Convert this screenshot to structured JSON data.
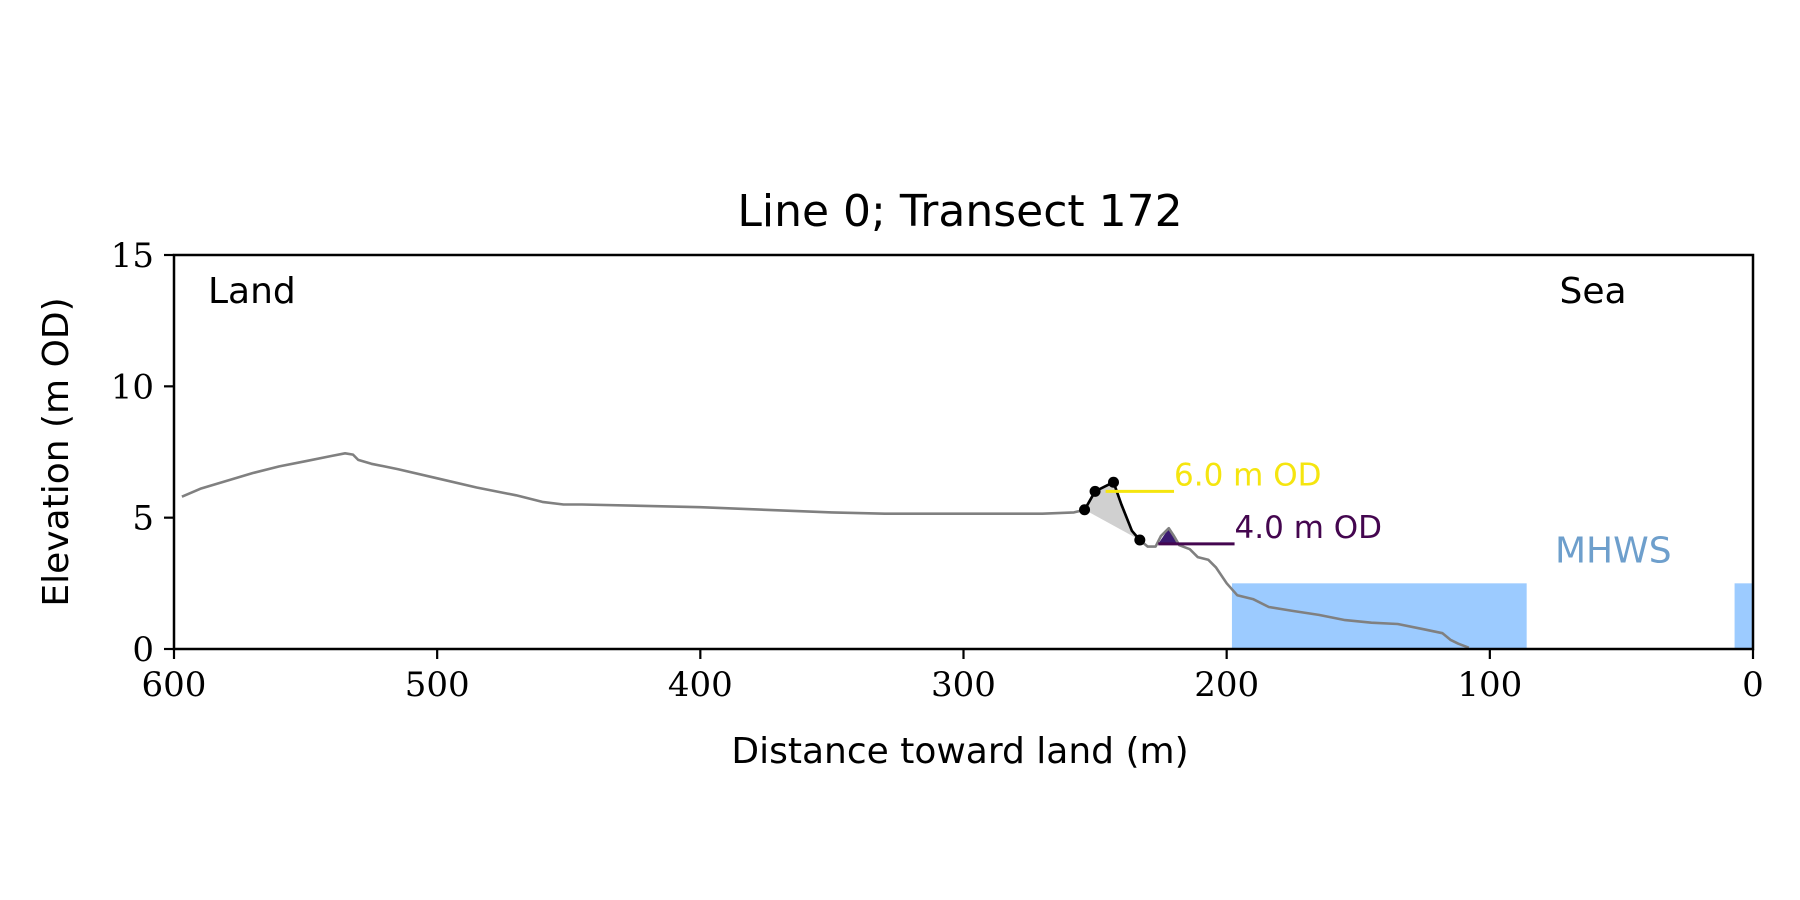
{
  "chart_data": {
    "type": "line",
    "title": "Line 0; Transect 172",
    "xlabel": "Distance toward land (m)",
    "ylabel": "Elevation (m OD)",
    "xlim": [
      600,
      0
    ],
    "ylim": [
      0,
      15
    ],
    "x_ticks": [
      600,
      500,
      400,
      300,
      200,
      100,
      0
    ],
    "y_ticks": [
      0,
      5,
      10,
      15
    ],
    "grid": false,
    "corner_labels": {
      "left": "Land",
      "right": "Sea"
    },
    "profile": {
      "color": "#808080",
      "x": [
        597,
        590,
        580,
        570,
        560,
        550,
        540,
        535,
        532,
        530,
        525,
        515,
        500,
        485,
        470,
        460,
        452,
        445,
        400,
        350,
        330,
        300,
        270,
        258,
        254,
        250,
        246,
        243,
        240,
        236,
        233,
        230,
        227,
        225,
        222,
        220,
        218,
        214,
        211,
        207,
        204,
        200,
        196,
        190,
        184,
        175,
        165,
        155,
        145,
        135,
        125,
        118,
        115,
        112,
        108
      ],
      "y": [
        5.8,
        6.1,
        6.4,
        6.7,
        6.95,
        7.15,
        7.35,
        7.45,
        7.4,
        7.2,
        7.05,
        6.85,
        6.5,
        6.15,
        5.85,
        5.6,
        5.5,
        5.5,
        5.4,
        5.2,
        5.15,
        5.15,
        5.15,
        5.2,
        5.3,
        6.0,
        6.2,
        6.35,
        5.5,
        4.5,
        4.15,
        3.9,
        3.9,
        4.3,
        4.6,
        4.3,
        3.95,
        3.8,
        3.5,
        3.4,
        3.1,
        2.5,
        2.05,
        1.9,
        1.6,
        1.45,
        1.3,
        1.1,
        1.0,
        0.95,
        0.75,
        0.6,
        0.35,
        0.2,
        0.05
      ]
    },
    "feature_line": {
      "color": "#000000",
      "x": [
        254,
        250,
        246,
        243,
        240,
        236,
        233
      ],
      "y": [
        5.3,
        6.0,
        6.2,
        6.35,
        5.5,
        4.5,
        4.15
      ]
    },
    "feature_points": {
      "x": [
        254,
        250,
        243,
        233
      ],
      "y": [
        5.3,
        6.0,
        6.35,
        4.15
      ]
    },
    "shaded_region": {
      "color": "#d0d0d0",
      "x": [
        254,
        250,
        246,
        243,
        240,
        236,
        233
      ],
      "y_top": [
        5.3,
        6.0,
        6.2,
        6.35,
        5.5,
        4.5,
        4.15
      ]
    },
    "dune_fill": {
      "color": "#3b1a70",
      "x": [
        226,
        222,
        218
      ],
      "y": [
        4.0,
        4.6,
        4.0
      ]
    },
    "contour_lines": [
      {
        "label": "6.0 m OD",
        "elevation": 6.0,
        "x_range": [
          246,
          220
        ],
        "color": "#f5e50f"
      },
      {
        "label": "4.0 m OD",
        "elevation": 4.0,
        "x_range": [
          226,
          197
        ],
        "color": "#44064f"
      }
    ],
    "mhws": {
      "label": "MHWS",
      "elevation": 2.5,
      "color": "#9ccbff",
      "label_color": "#6e9fcc",
      "x_spans": [
        [
          198,
          86
        ],
        [
          7,
          0
        ]
      ]
    }
  }
}
